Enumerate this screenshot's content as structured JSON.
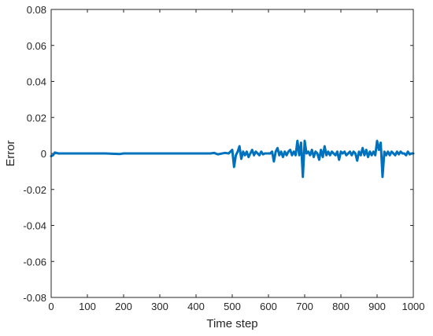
{
  "chart_data": {
    "type": "line",
    "title": "",
    "xlabel": "Time step",
    "ylabel": "Error",
    "xlim": [
      0,
      1000
    ],
    "ylim": [
      -0.08,
      0.08
    ],
    "grid": false,
    "legend": "none",
    "x_ticks": [
      0,
      100,
      200,
      300,
      400,
      500,
      600,
      700,
      800,
      900,
      1000
    ],
    "x_tick_labels": [
      "0",
      "100",
      "200",
      "300",
      "400",
      "500",
      "600",
      "700",
      "800",
      "900",
      "1000"
    ],
    "y_ticks": [
      0.08,
      0.06,
      0.04,
      0.02,
      0,
      -0.02,
      -0.04,
      -0.06,
      -0.08
    ],
    "y_tick_labels": [
      "0.08",
      "0.06",
      "0.04",
      "0.02",
      "0",
      "-0.02",
      "-0.04",
      "-0.06",
      "-0.08"
    ],
    "series": [
      {
        "color": "#0072BD",
        "x": [
          0,
          5,
          10,
          20,
          50,
          100,
          150,
          190,
          200,
          210,
          250,
          300,
          350,
          400,
          440,
          450,
          460,
          480,
          490,
          495,
          500,
          505,
          510,
          515,
          520,
          525,
          530,
          535,
          540,
          545,
          550,
          555,
          560,
          565,
          570,
          575,
          580,
          585,
          590,
          595,
          600,
          605,
          610,
          615,
          620,
          625,
          630,
          635,
          640,
          645,
          650,
          655,
          660,
          665,
          670,
          675,
          680,
          685,
          690,
          695,
          700,
          705,
          710,
          715,
          720,
          725,
          730,
          735,
          740,
          745,
          750,
          755,
          760,
          765,
          770,
          775,
          780,
          785,
          790,
          795,
          800,
          805,
          810,
          815,
          820,
          825,
          830,
          835,
          840,
          845,
          850,
          855,
          860,
          865,
          870,
          875,
          880,
          885,
          890,
          895,
          900,
          905,
          910,
          915,
          920,
          925,
          930,
          935,
          940,
          945,
          950,
          955,
          960,
          965,
          970,
          975,
          980,
          985,
          990,
          995,
          1000
        ],
        "y": [
          -0.0015,
          -0.001,
          0.0005,
          0,
          0,
          0,
          0,
          -0.0003,
          0,
          0,
          0,
          0,
          0,
          0,
          0,
          0.0003,
          -0.0005,
          0.0003,
          0,
          0.001,
          0.002,
          -0.0075,
          -0.001,
          0.001,
          0.004,
          -0.003,
          0.001,
          -0.001,
          0.001,
          -0.002,
          0,
          0.002,
          -0.001,
          0.001,
          0,
          -0.001,
          0.001,
          -0.0005,
          0,
          0,
          0,
          0,
          0.001,
          -0.0045,
          0.001,
          0.003,
          -0.001,
          0.001,
          -0.002,
          0.001,
          -0.001,
          0.001,
          0.002,
          -0.001,
          0.001,
          -0.001,
          0.007,
          -0.001,
          0.006,
          -0.013,
          0.007,
          0,
          0.001,
          -0.001,
          0.002,
          -0.002,
          0.001,
          0,
          -0.0035,
          0.002,
          -0.002,
          0.004,
          -0.001,
          0.001,
          -0.001,
          0.001,
          0,
          -0.001,
          0.001,
          -0.0035,
          0.001,
          0,
          0.001,
          -0.001,
          0,
          0.001,
          -0.001,
          0.001,
          0,
          -0.004,
          0.001,
          -0.001,
          0.003,
          -0.001,
          0.002,
          -0.002,
          0.001,
          -0.001,
          0.001,
          -0.001,
          0.007,
          0.002,
          0.006,
          -0.013,
          0.001,
          -0.001,
          0.001,
          -0.001,
          0.001,
          0,
          -0.001,
          0.001,
          -0.0005,
          0.001,
          0,
          0,
          -0.001,
          0.001,
          -0.0005,
          0,
          0
        ]
      }
    ]
  }
}
